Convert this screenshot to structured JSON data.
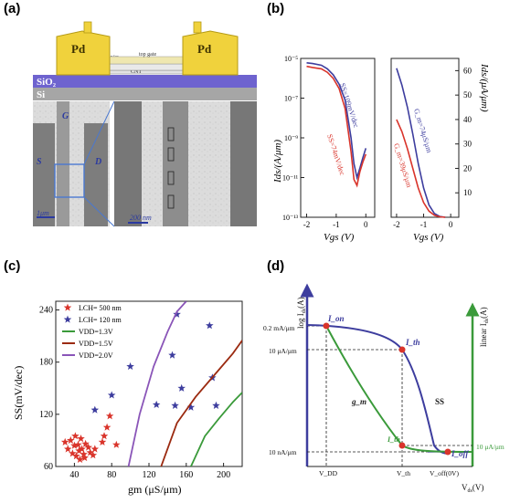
{
  "figure": {
    "panel_labels": [
      "(a)",
      "(b)",
      "(c)",
      "(d)"
    ],
    "panel_a": {
      "device_labels": {
        "pd_left": "Pd",
        "pd_right": "Pd",
        "top_gate": "top gate",
        "hfo2": "HfO₂",
        "cnt": "CNT",
        "sio2": "SiO₂",
        "si": "Si"
      },
      "sem_labels": {
        "gate": "G",
        "source": "S",
        "drain": "D",
        "scale1": "1μm",
        "scale2": "200 nm"
      }
    },
    "colors": {
      "red": "#d9342b",
      "blue": "#3d3d9e",
      "green": "#3a9a3a",
      "darkred": "#9b2a10",
      "purple": "#8a55b8",
      "pd": "#f0d23c",
      "sio2": "#7a6fd6",
      "si": "#a9a9a9"
    }
  },
  "chart_data": [
    {
      "panel": "(b) left",
      "type": "line",
      "xlabel": "V_gs (V)",
      "ylabel": "I_ds/(A/μm)",
      "yscale": "log",
      "xlim": [
        -2.2,
        0.3
      ],
      "ylim": [
        1e-13,
        1e-05
      ],
      "x_ticks": [
        "-2",
        "-1",
        "0"
      ],
      "y_ticks": [
        "10⁻¹³",
        "10⁻¹¹",
        "10⁻⁹",
        "10⁻⁷",
        "10⁻⁵"
      ],
      "annotations": [
        "SS=109mV/dec",
        "SS=74mV/dec"
      ],
      "series": [
        {
          "name": "SS=109mV/dec",
          "color": "blue",
          "x": [
            -2.0,
            -1.8,
            -1.5,
            -1.3,
            -1.1,
            -0.9,
            -0.7,
            -0.5,
            -0.4,
            -0.3,
            -0.2,
            -0.1,
            0.0
          ],
          "y": [
            6e-06,
            5.5e-06,
            4.5e-06,
            3e-06,
            1.5e-06,
            5e-07,
            8e-08,
            1e-09,
            5e-11,
            1e-11,
            3e-11,
            1e-10,
            3e-10
          ]
        },
        {
          "name": "SS=74mV/dec",
          "color": "red",
          "x": [
            -2.0,
            -1.8,
            -1.5,
            -1.3,
            -1.1,
            -0.9,
            -0.7,
            -0.5,
            -0.4,
            -0.3,
            -0.2,
            -0.1,
            0.0
          ],
          "y": [
            4e-06,
            3.5e-06,
            3e-06,
            2e-06,
            1e-06,
            3e-07,
            3e-08,
            2e-10,
            8e-12,
            4e-12,
            2e-11,
            6e-11,
            1.5e-10
          ]
        }
      ]
    },
    {
      "panel": "(b) right",
      "type": "line",
      "xlabel": "V_gs (V)",
      "ylabel": "I_ds/(μA/μm)",
      "xlim": [
        -2.2,
        0.3
      ],
      "ylim": [
        0,
        65
      ],
      "x_ticks": [
        "-2",
        "-1",
        "0"
      ],
      "y_ticks": [
        "10",
        "20",
        "30",
        "40",
        "50",
        "60"
      ],
      "annotations": [
        "G_m=74μS/μm",
        "G_m=39μS/μm"
      ],
      "series": [
        {
          "name": "G_m=74μS/μm",
          "color": "blue",
          "x": [
            -2.0,
            -1.8,
            -1.6,
            -1.4,
            -1.2,
            -1.0,
            -0.8,
            -0.6,
            -0.4,
            -0.2
          ],
          "y": [
            61,
            54,
            45,
            34,
            22,
            12,
            5,
            1.5,
            0.3,
            0
          ]
        },
        {
          "name": "G_m=39μS/μm",
          "color": "red",
          "x": [
            -2.0,
            -1.8,
            -1.6,
            -1.4,
            -1.2,
            -1.0,
            -0.8,
            -0.6,
            -0.4,
            -0.2
          ],
          "y": [
            40,
            35,
            28,
            20,
            12,
            6,
            2.5,
            0.8,
            0.2,
            0
          ]
        }
      ]
    },
    {
      "panel": "(c)",
      "type": "scatter",
      "xlabel": "g_m (μS/μm)",
      "ylabel": "SS(mV/dec)",
      "xlim": [
        20,
        220
      ],
      "ylim": [
        60,
        250
      ],
      "x_ticks": [
        "40",
        "80",
        "120",
        "160",
        "200"
      ],
      "y_ticks": [
        "60",
        "120",
        "180",
        "240"
      ],
      "legend_position": "top-left",
      "series": [
        {
          "name": "L_CH= 500 nm",
          "marker": "star",
          "color": "red",
          "x": [
            30,
            33,
            36,
            38,
            40,
            41,
            42,
            44,
            45,
            46,
            47,
            48,
            50,
            51,
            52,
            55,
            57,
            60,
            62,
            70,
            72,
            75,
            78,
            85
          ],
          "y": [
            88,
            80,
            90,
            75,
            84,
            95,
            72,
            85,
            78,
            68,
            92,
            80,
            74,
            70,
            86,
            82,
            76,
            73,
            80,
            88,
            95,
            105,
            118,
            85
          ]
        },
        {
          "name": "L_CH= 120 nm",
          "marker": "star",
          "color": "blue",
          "x": [
            62,
            80,
            100,
            128,
            145,
            148,
            150,
            155,
            165,
            185,
            188,
            192
          ],
          "y": [
            125,
            142,
            175,
            131,
            188,
            130,
            235,
            150,
            128,
            222,
            162,
            130
          ]
        },
        {
          "name": "V_DD=1.3V",
          "type": "line",
          "color": "green",
          "x": [
            165,
            180,
            195,
            210,
            220
          ],
          "y": [
            60,
            95,
            115,
            134,
            145
          ]
        },
        {
          "name": "V_DD=1.5V",
          "type": "line",
          "color": "darkred",
          "x": [
            133,
            150,
            170,
            190,
            210,
            220
          ],
          "y": [
            60,
            110,
            140,
            165,
            190,
            205
          ]
        },
        {
          "name": "V_DD=2.0V",
          "type": "line",
          "color": "purple",
          "x": [
            98,
            110,
            125,
            140,
            150,
            160
          ],
          "y": [
            60,
            120,
            175,
            215,
            238,
            250
          ]
        }
      ]
    },
    {
      "panel": "(d)",
      "type": "line",
      "xlabel": "V_ds (V)",
      "ylabel_left": "log I_ds (A)",
      "ylabel_right": "linear I_ds (A)",
      "y_tick_labels_left": [
        "0.2 mA/μm",
        "10 μA/μm",
        "10 nA/μm"
      ],
      "y_tick_labels_right": [
        "10 μA/μm"
      ],
      "x_tick_labels": [
        "V_DD",
        "V_th",
        "V_off(0V)"
      ],
      "annotations": [
        "I_on",
        "I_th",
        "I_th",
        "I_off",
        "g_m",
        "SS"
      ],
      "series": [
        {
          "name": "log I_ds",
          "color": "blue"
        },
        {
          "name": "g_m",
          "color": "green"
        }
      ]
    }
  ]
}
